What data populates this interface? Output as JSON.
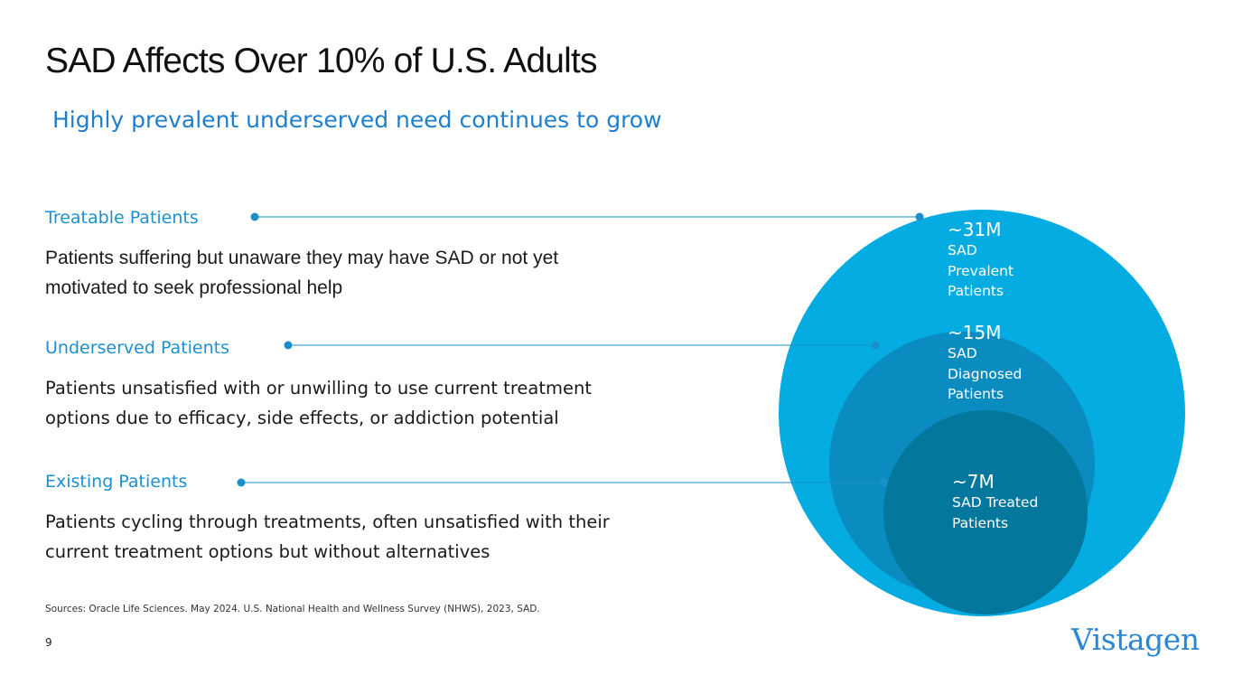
{
  "title": "SAD Affects Over 10% of U.S. Adults",
  "subtitle": "Highly prevalent underserved need continues to grow",
  "sections": [
    {
      "heading": "Treatable Patients",
      "body": "Patients suffering but unaware they may have SAD or not yet motivated to seek professional help"
    },
    {
      "heading": "Underserved Patients",
      "body": "Patients unsatisfied with or unwilling to use current treatment options due to efficacy, side effects, or addiction potential"
    },
    {
      "heading": "Existing Patients",
      "body": "Patients cycling through treatments, often unsatisfied with their current treatment options but without alternatives"
    }
  ],
  "circles": [
    {
      "value": "~31M",
      "label": "SAD Prevalent Patients",
      "color": "#05ace2"
    },
    {
      "value": "~15M",
      "label": "SAD Diagnosed Patients",
      "color": "#0a8cc1"
    },
    {
      "value": "~7M",
      "label": "SAD Treated Patients",
      "color": "#04779c"
    }
  ],
  "colors": {
    "accent": "#1e8fd0",
    "connector": "#1a8fc9",
    "title": "#111111"
  },
  "sources": "Sources: Oracle Life Sciences. May 2024. U.S. National Health and Wellness Survey (NHWS), 2023, SAD.",
  "page_number": "9",
  "logo": "Vistagen"
}
